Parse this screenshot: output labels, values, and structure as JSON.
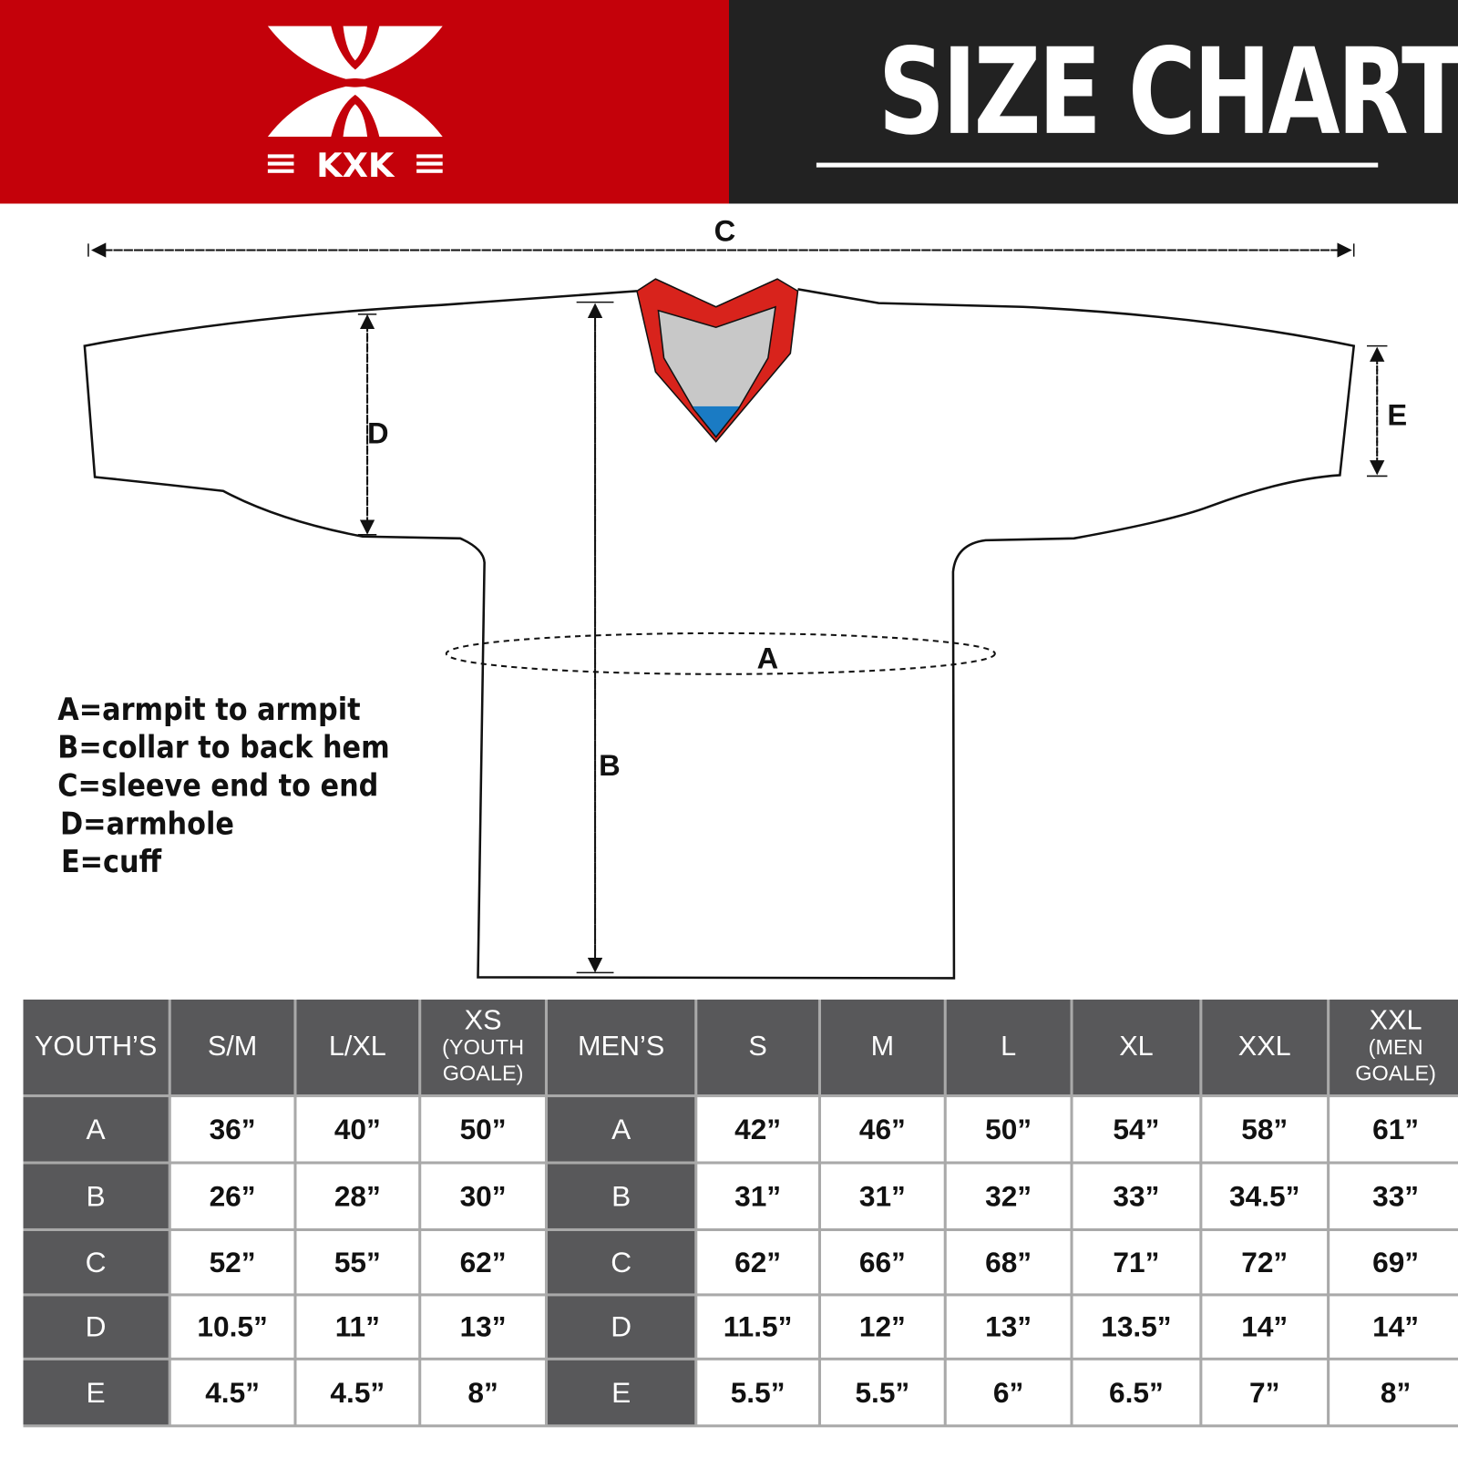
{
  "brand": {
    "name": "KXK",
    "color": "#c4010a"
  },
  "header": {
    "title": "SIZE CHART"
  },
  "diagram": {
    "labels": {
      "A": "A",
      "B": "B",
      "C": "C",
      "D": "D",
      "E": "E"
    },
    "collar_colors": {
      "trim": "#d8231c",
      "inner": "#c8c8c8",
      "tag": "#1a7bc4"
    }
  },
  "legend": [
    "A=armpit to armpit",
    "B=collar to back hem",
    "C=sleeve end to end",
    "D=armhole",
    "E=cuff"
  ],
  "table": {
    "headers": [
      {
        "main": "YOUTH’S",
        "sub": ""
      },
      {
        "main": "S/M",
        "sub": ""
      },
      {
        "main": "L/XL",
        "sub": ""
      },
      {
        "main": "XS",
        "sub": "(YOUTH GOALE)"
      },
      {
        "main": "MEN’S",
        "sub": ""
      },
      {
        "main": "S",
        "sub": ""
      },
      {
        "main": "M",
        "sub": ""
      },
      {
        "main": "L",
        "sub": ""
      },
      {
        "main": "XL",
        "sub": ""
      },
      {
        "main": "XXL",
        "sub": ""
      },
      {
        "main": "XXL",
        "sub": "(MEN GOALE)"
      }
    ],
    "rows": [
      [
        "A",
        "36”",
        "40”",
        "50”",
        "A",
        "42”",
        "46”",
        "50”",
        "54”",
        "58”",
        "61”"
      ],
      [
        "B",
        "26”",
        "28”",
        "30”",
        "B",
        "31”",
        "31”",
        "32”",
        "33”",
        "34.5”",
        "33”"
      ],
      [
        "C",
        "52”",
        "55”",
        "62”",
        "C",
        "62”",
        "66”",
        "68”",
        "71”",
        "72”",
        "69”"
      ],
      [
        "D",
        "10.5”",
        "11”",
        "13”",
        "D",
        "11.5”",
        "12”",
        "13”",
        "13.5”",
        "14”",
        "14”"
      ],
      [
        "E",
        "4.5”",
        "4.5”",
        "8”",
        "E",
        "5.5”",
        "5.5”",
        "6”",
        "6.5”",
        "7”",
        "8”"
      ]
    ]
  }
}
